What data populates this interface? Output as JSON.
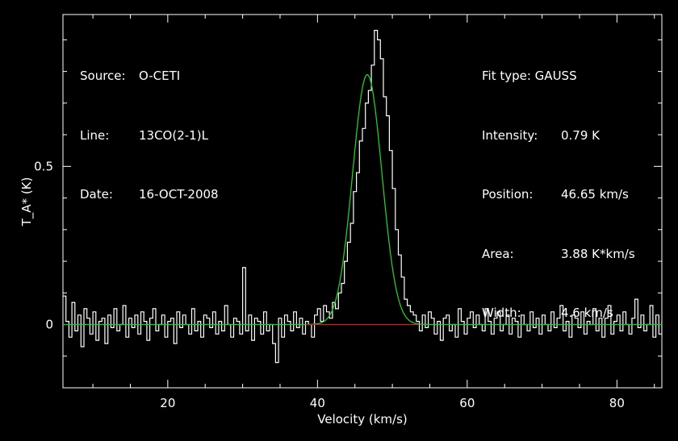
{
  "header_left": {
    "rows": [
      {
        "key": "Source:",
        "value": "O-CETI"
      },
      {
        "key": "Line:",
        "value": "13CO(2-1)L"
      },
      {
        "key": "Date:",
        "value": "16-OCT-2008"
      }
    ]
  },
  "header_right": {
    "title": "Fit type: GAUSS",
    "rows": [
      {
        "key": "Intensity:",
        "value": "0.79 K"
      },
      {
        "key": "Position:",
        "value": "46.65 km/s"
      },
      {
        "key": "Area:",
        "value": "3.88 K*km/s"
      },
      {
        "key": "Width:",
        "value": "4.6 km/s"
      }
    ]
  },
  "colors": {
    "background": "#000000",
    "axes": "#ffffff",
    "spectrum": "#ffffff",
    "fit": "#22cc22",
    "baseline": "#cc2222"
  },
  "chart_data": {
    "type": "line",
    "xlabel": "Velocity (km/s)",
    "ylabel": "T_A* (K)",
    "xlim": [
      6,
      86
    ],
    "ylim": [
      -0.2,
      0.98
    ],
    "xticks": [
      20,
      40,
      60,
      80
    ],
    "yticks": [
      0,
      0.5
    ],
    "xtick_labels": [
      "20",
      "40",
      "60",
      "80"
    ],
    "ytick_labels": [
      "0",
      "0.5"
    ],
    "grid": false,
    "series": [
      {
        "kind": "spectrum",
        "x_start": 6,
        "x_step": 0.4,
        "values": [
          0.09,
          0.01,
          -0.04,
          0.07,
          -0.02,
          0.03,
          -0.07,
          0.05,
          0.02,
          -0.03,
          0.04,
          -0.05,
          0.01,
          0.02,
          -0.06,
          0.03,
          -0.01,
          0.05,
          -0.02,
          0.0,
          0.06,
          -0.04,
          0.02,
          -0.01,
          0.03,
          -0.03,
          0.04,
          0.01,
          -0.05,
          0.02,
          0.05,
          -0.02,
          0.0,
          0.03,
          -0.04,
          0.01,
          0.02,
          -0.06,
          0.04,
          -0.01,
          0.03,
          0.0,
          -0.03,
          0.05,
          -0.02,
          0.01,
          -0.04,
          0.03,
          0.02,
          -0.01,
          0.04,
          -0.03,
          0.01,
          -0.02,
          0.06,
          0.0,
          -0.04,
          0.02,
          0.01,
          -0.03,
          0.18,
          -0.02,
          0.03,
          -0.05,
          0.02,
          0.01,
          -0.03,
          0.04,
          -0.02,
          0.0,
          -0.06,
          -0.12,
          0.02,
          -0.04,
          0.03,
          0.01,
          -0.02,
          0.04,
          -0.01,
          0.02,
          -0.03,
          0.01,
          0.0,
          -0.04,
          0.03,
          0.05,
          0.01,
          0.06,
          0.04,
          0.02,
          0.07,
          0.05,
          0.1,
          0.13,
          0.2,
          0.26,
          0.32,
          0.42,
          0.48,
          0.58,
          0.62,
          0.7,
          0.74,
          0.82,
          0.93,
          0.9,
          0.84,
          0.72,
          0.66,
          0.55,
          0.43,
          0.3,
          0.22,
          0.15,
          0.08,
          0.06,
          0.04,
          0.03,
          0.01,
          -0.02,
          0.03,
          -0.01,
          0.04,
          0.02,
          -0.03,
          0.01,
          -0.05,
          0.02,
          0.03,
          -0.02,
          0.0,
          -0.04,
          0.05,
          0.01,
          -0.03,
          0.02,
          0.04,
          -0.01,
          0.03,
          0.0,
          -0.02,
          0.05,
          0.01,
          -0.03,
          0.02,
          0.04,
          -0.02,
          0.0,
          0.03,
          -0.03,
          0.02,
          0.01,
          -0.04,
          0.03,
          0.0,
          -0.02,
          0.04,
          -0.01,
          0.02,
          -0.03,
          0.03,
          0.0,
          -0.02,
          0.04,
          -0.01,
          0.02,
          0.06,
          -0.02,
          0.01,
          -0.04,
          0.03,
          0.02,
          -0.01,
          0.04,
          -0.03,
          0.01,
          0.0,
          0.05,
          -0.02,
          0.02,
          -0.04,
          0.02,
          0.06,
          -0.03,
          0.01,
          0.03,
          -0.02,
          0.04,
          0.0,
          -0.03,
          0.02,
          0.08,
          -0.01,
          0.03,
          -0.02,
          0.0,
          0.06,
          -0.04,
          0.03,
          -0.03,
          0.01,
          0.05
        ]
      },
      {
        "kind": "gaussian-fit",
        "amplitude": 0.79,
        "center": 46.65,
        "fwhm": 4.6
      },
      {
        "kind": "baseline-window",
        "x": [
          38.5,
          53.5
        ],
        "y": 0
      }
    ]
  }
}
